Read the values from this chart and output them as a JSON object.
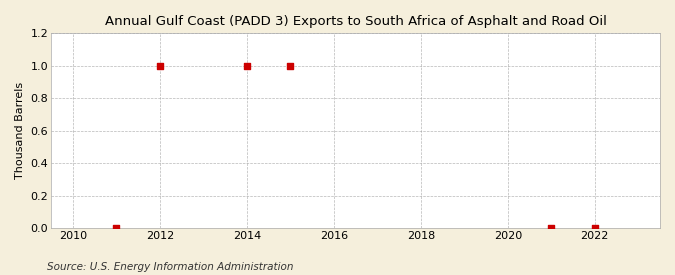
{
  "title": "Annual Gulf Coast (PADD 3) Exports to South Africa of Asphalt and Road Oil",
  "ylabel": "Thousand Barrels",
  "source_text": "Source: U.S. Energy Information Administration",
  "xlim": [
    2009.5,
    2023.5
  ],
  "ylim": [
    0.0,
    1.2
  ],
  "xticks": [
    2010,
    2012,
    2014,
    2016,
    2018,
    2020,
    2022
  ],
  "yticks": [
    0.0,
    0.2,
    0.4,
    0.6,
    0.8,
    1.0,
    1.2
  ],
  "data_years": [
    2011,
    2012,
    2014,
    2015,
    2021,
    2022
  ],
  "data_values": [
    0.0,
    1.0,
    1.0,
    1.0,
    0.0,
    0.0
  ],
  "marker_color": "#cc0000",
  "marker_size": 4,
  "background_color": "#f5efdc",
  "plot_bg_color": "#ffffff",
  "grid_color": "#999999",
  "title_fontsize": 9.5,
  "label_fontsize": 8,
  "tick_fontsize": 8,
  "source_fontsize": 7.5
}
